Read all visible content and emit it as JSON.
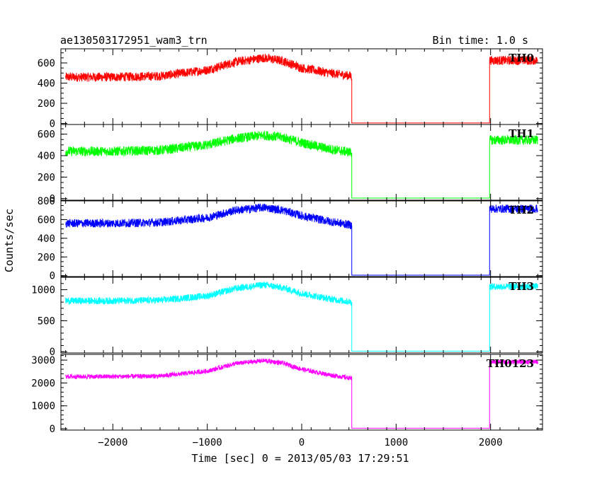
{
  "chart_data": {
    "type": "line",
    "title": "ae130503172951_wam3_trn",
    "bin_time_label": "Bin time: 1.0 s",
    "xlabel": "Time [sec] 0 = 2013/05/03 17:29:51",
    "ylabel": "Counts/sec",
    "xlim": [
      -2550,
      2550
    ],
    "x_ticks": [
      -2000,
      -1000,
      0,
      1000,
      2000
    ],
    "x_tick_labels": [
      "−2000",
      "−1000",
      "0",
      "1000",
      "2000"
    ],
    "gap": [
      530,
      1990
    ],
    "x_profile": [
      -2500,
      -2000,
      -1500,
      -1000,
      -700,
      -400,
      -200,
      0,
      300,
      530
    ],
    "panels": [
      {
        "name": "TH0",
        "color": "#ff0000",
        "ylim": [
          -10,
          740
        ],
        "y_ticks": [
          0,
          200,
          400,
          600
        ],
        "y_tick_labels": [
          "0",
          "200",
          "400",
          "600"
        ],
        "profile": [
          460,
          460,
          470,
          530,
          610,
          650,
          620,
          550,
          500,
          470
        ],
        "noise": 45,
        "after_gap": 625,
        "gap_level": 5
      },
      {
        "name": "TH1",
        "color": "#00ff00",
        "ylim": [
          -15,
          690
        ],
        "y_ticks": [
          0,
          200,
          400,
          600
        ],
        "y_tick_labels": [
          "0",
          "200",
          "400",
          "600"
        ],
        "profile": [
          440,
          440,
          450,
          500,
          560,
          590,
          570,
          520,
          460,
          430
        ],
        "noise": 45,
        "after_gap": 545,
        "gap_level": 5
      },
      {
        "name": "TH2",
        "color": "#0000ff",
        "ylim": [
          -10,
          800
        ],
        "y_ticks": [
          0,
          200,
          400,
          600,
          800
        ],
        "y_tick_labels": [
          "0",
          "200",
          "400",
          "600",
          "800"
        ],
        "profile": [
          560,
          560,
          570,
          620,
          700,
          730,
          700,
          640,
          580,
          540
        ],
        "noise": 45,
        "after_gap": 715,
        "gap_level": 5
      },
      {
        "name": "TH3",
        "color": "#00ffff",
        "ylim": [
          -20,
          1200
        ],
        "y_ticks": [
          0,
          500,
          1000
        ],
        "y_tick_labels": [
          "0",
          "500",
          "1000"
        ],
        "profile": [
          820,
          820,
          830,
          900,
          1020,
          1080,
          1030,
          940,
          850,
          800
        ],
        "noise": 55,
        "after_gap": 1050,
        "gap_level": 10
      },
      {
        "name": "TH0123",
        "color": "#ff00ff",
        "ylim": [
          -60,
          3250
        ],
        "y_ticks": [
          0,
          1000,
          2000,
          3000
        ],
        "y_tick_labels": [
          "0",
          "1000",
          "2000",
          "3000"
        ],
        "profile": [
          2280,
          2280,
          2300,
          2520,
          2850,
          2980,
          2870,
          2600,
          2350,
          2200
        ],
        "noise": 100,
        "after_gap": 2920,
        "gap_level": 20
      }
    ]
  }
}
